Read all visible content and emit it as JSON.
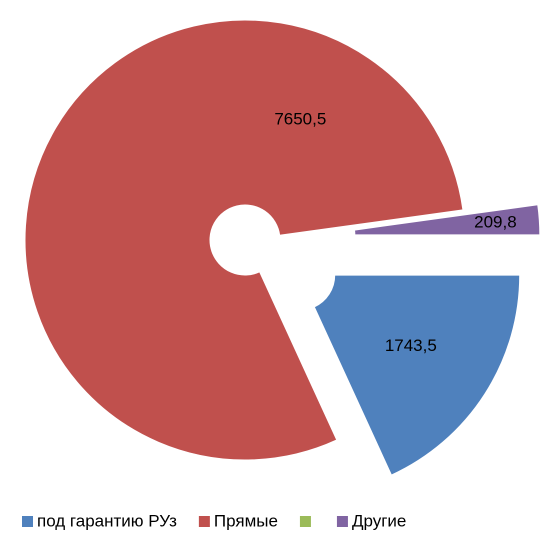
{
  "chart_data": {
    "type": "doughnut",
    "series": [
      {
        "name": "под гарантию РУз",
        "color": "#4f81bd",
        "value": 1743.5,
        "value_label": "1743,5"
      },
      {
        "name": "Прямые",
        "color": "#c0504d",
        "value": 7650.5,
        "value_label": "7650,5"
      },
      {
        "name": null,
        "color": "#9bbb59",
        "value": null,
        "value_label": null
      },
      {
        "name": "Другие",
        "color": "#8064a2",
        "value": 209.8,
        "value_label": "209,8"
      }
    ],
    "legend": "bottom"
  }
}
